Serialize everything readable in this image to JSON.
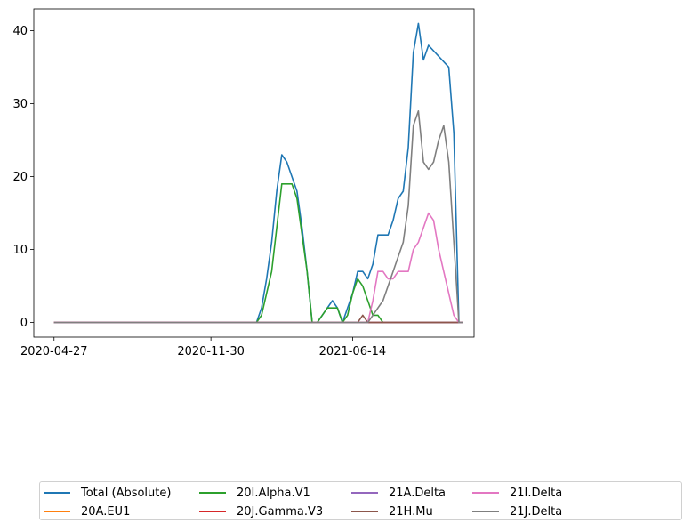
{
  "chart_data": {
    "type": "line",
    "title": "",
    "xlabel": "",
    "ylabel": "",
    "x_tick_labels": [
      "2020-04-27",
      "2020-11-30",
      "2021-06-14"
    ],
    "x_tick_weeks": [
      0,
      31,
      59
    ],
    "y_ticks": [
      0,
      10,
      20,
      30,
      40
    ],
    "xlim": [
      -4,
      83
    ],
    "ylim": [
      -2,
      43
    ],
    "grid": false,
    "legend_position": "bottom",
    "series": [
      {
        "name": "Total (Absolute)",
        "color": "#1f77b4",
        "points": [
          [
            0,
            0
          ],
          [
            40,
            0
          ],
          [
            41,
            2
          ],
          [
            42,
            6
          ],
          [
            43,
            11
          ],
          [
            44,
            18
          ],
          [
            45,
            23
          ],
          [
            46,
            22
          ],
          [
            47,
            20
          ],
          [
            48,
            18
          ],
          [
            49,
            13
          ],
          [
            50,
            7
          ],
          [
            51,
            0
          ],
          [
            52,
            0
          ],
          [
            53,
            1
          ],
          [
            54,
            2
          ],
          [
            55,
            3
          ],
          [
            56,
            2
          ],
          [
            57,
            0
          ],
          [
            58,
            2
          ],
          [
            59,
            4
          ],
          [
            60,
            7
          ],
          [
            61,
            7
          ],
          [
            62,
            6
          ],
          [
            63,
            8
          ],
          [
            64,
            12
          ],
          [
            65,
            12
          ],
          [
            66,
            12
          ],
          [
            67,
            14
          ],
          [
            68,
            17
          ],
          [
            69,
            18
          ],
          [
            70,
            24
          ],
          [
            71,
            37
          ],
          [
            72,
            41
          ],
          [
            73,
            36
          ],
          [
            74,
            38
          ],
          [
            78,
            35
          ],
          [
            79,
            26
          ],
          [
            80,
            0
          ],
          [
            80.8,
            0
          ]
        ]
      },
      {
        "name": "20A.EU1",
        "color": "#ff7f0e",
        "points": [
          [
            0,
            0
          ],
          [
            80.8,
            0
          ]
        ]
      },
      {
        "name": "20I.Alpha.V1",
        "color": "#2ca02c",
        "points": [
          [
            0,
            0
          ],
          [
            40,
            0
          ],
          [
            41,
            1
          ],
          [
            42,
            4
          ],
          [
            43,
            7
          ],
          [
            44,
            13
          ],
          [
            45,
            19
          ],
          [
            46,
            19
          ],
          [
            47,
            19
          ],
          [
            48,
            17
          ],
          [
            49,
            12
          ],
          [
            50,
            7
          ],
          [
            51,
            0
          ],
          [
            52,
            0
          ],
          [
            53,
            1
          ],
          [
            54,
            2
          ],
          [
            55,
            2
          ],
          [
            56,
            2
          ],
          [
            57,
            0
          ],
          [
            58,
            1
          ],
          [
            59,
            4
          ],
          [
            60,
            6
          ],
          [
            61,
            5
          ],
          [
            62,
            3
          ],
          [
            63,
            1
          ],
          [
            64,
            1
          ],
          [
            65,
            0
          ],
          [
            80.8,
            0
          ]
        ]
      },
      {
        "name": "20J.Gamma.V3",
        "color": "#d62728",
        "points": [
          [
            0,
            0
          ],
          [
            80.8,
            0
          ]
        ]
      },
      {
        "name": "21A.Delta",
        "color": "#9467bd",
        "points": [
          [
            0,
            0
          ],
          [
            80.8,
            0
          ]
        ]
      },
      {
        "name": "21H.Mu",
        "color": "#8c564b",
        "points": [
          [
            0,
            0
          ],
          [
            60,
            0
          ],
          [
            61,
            1
          ],
          [
            62,
            0
          ],
          [
            80.8,
            0
          ]
        ]
      },
      {
        "name": "21I.Delta",
        "color": "#e377c2",
        "points": [
          [
            0,
            0
          ],
          [
            62,
            0
          ],
          [
            63,
            3
          ],
          [
            64,
            7
          ],
          [
            65,
            7
          ],
          [
            66,
            6
          ],
          [
            67,
            6
          ],
          [
            68,
            7
          ],
          [
            69,
            7
          ],
          [
            70,
            7
          ],
          [
            71,
            10
          ],
          [
            72,
            11
          ],
          [
            73,
            13
          ],
          [
            74,
            15
          ],
          [
            75,
            14
          ],
          [
            76,
            10
          ],
          [
            77,
            7
          ],
          [
            78,
            4
          ],
          [
            79,
            1
          ],
          [
            80,
            0
          ],
          [
            80.8,
            0
          ]
        ]
      },
      {
        "name": "21J.Delta",
        "color": "#7f7f7f",
        "points": [
          [
            0,
            0
          ],
          [
            62,
            0
          ],
          [
            63,
            1
          ],
          [
            64,
            2
          ],
          [
            65,
            3
          ],
          [
            66,
            5
          ],
          [
            67,
            7
          ],
          [
            68,
            9
          ],
          [
            69,
            11
          ],
          [
            70,
            16
          ],
          [
            71,
            27
          ],
          [
            72,
            29
          ],
          [
            73,
            22
          ],
          [
            74,
            21
          ],
          [
            75,
            22
          ],
          [
            76,
            25
          ],
          [
            77,
            27
          ],
          [
            78,
            22
          ],
          [
            79,
            11
          ],
          [
            80,
            0
          ],
          [
            80.8,
            0
          ]
        ]
      }
    ]
  }
}
